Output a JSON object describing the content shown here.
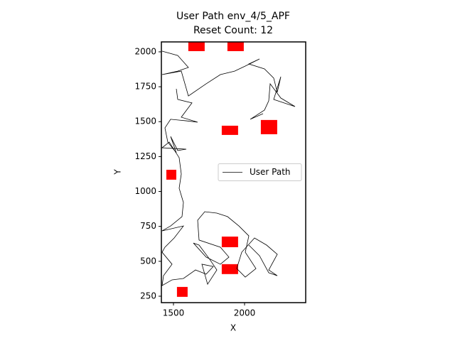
{
  "chart_data": {
    "type": "line",
    "title": "User Path env_4/5_APF",
    "subtitle": "Reset Count: 12",
    "x_label": "X",
    "y_label": "Y",
    "xlim": [
      1415,
      2430
    ],
    "ylim": [
      204,
      2071
    ],
    "xticks": [
      1500,
      2000
    ],
    "yticks": [
      250,
      500,
      750,
      1000,
      1250,
      1500,
      1750,
      2000
    ],
    "grid": false,
    "legend": "center right",
    "series": [
      {
        "name": "User Path",
        "color": "#000000",
        "x": [
          1420,
          1530,
          1605,
          1530,
          1420,
          1555,
          1605,
          1730,
          1830,
          1930,
          2005,
          2105,
          2030,
          2140,
          2205,
          2230,
          2255,
          2205,
          2355,
          2255,
          2180,
          2170,
          2140,
          2040,
          2130,
          null,
          1520,
          1530,
          1630,
          1555,
          1670,
          1590,
          1480,
          1440,
          1460,
          1520,
          1480,
          1530,
          1590,
          1420,
          1470,
          1540,
          1555,
          1540,
          1570,
          1560,
          1480,
          1420,
          1570,
          1505,
          1440,
          1420,
          1490,
          1430,
          1420,
          1490,
          1570,
          1655,
          1730,
          1780,
          1700,
          1740,
          1805,
          1755,
          1680,
          1640,
          1730,
          1830,
          1890,
          1830,
          1680,
          1670,
          1720,
          1805,
          1880,
          1960,
          2030,
          2005,
          2080,
          2005,
          1945,
          1980,
          2070,
          2155,
          2230,
          2170,
          2230,
          2170,
          2105,
          2030
        ],
        "values": [
          2005,
          1974,
          1888,
          1862,
          1837,
          1862,
          1684,
          1771,
          1837,
          1862,
          1898,
          1949,
          1913,
          1878,
          1812,
          1710,
          1822,
          1659,
          1608,
          1669,
          1771,
          1649,
          1583,
          1517,
          1557,
          null,
          1735,
          1659,
          1634,
          1532,
          1496,
          1506,
          1517,
          1455,
          1354,
          1277,
          1394,
          1293,
          1303,
          1313,
          1354,
          1242,
          1125,
          1023,
          921,
          820,
          753,
          718,
          753,
          667,
          601,
          565,
          479,
          397,
          326,
          367,
          377,
          438,
          408,
          463,
          479,
          336,
          438,
          514,
          616,
          631,
          530,
          479,
          530,
          601,
          652,
          794,
          855,
          845,
          820,
          753,
          682,
          565,
          448,
          387,
          448,
          565,
          667,
          616,
          550,
          438,
          397,
          418,
          540,
          616
        ]
      }
    ],
    "obstacles": [
      {
        "x": 1662,
        "y": 2038,
        "w": 115,
        "h": 66
      },
      {
        "x": 1937,
        "y": 2038,
        "w": 115,
        "h": 66
      },
      {
        "x": 1897,
        "y": 1438,
        "w": 115,
        "h": 66
      },
      {
        "x": 2172,
        "y": 1461,
        "w": 115,
        "h": 102
      },
      {
        "x": 1485,
        "y": 1120,
        "w": 70,
        "h": 71
      },
      {
        "x": 1897,
        "y": 639,
        "w": 115,
        "h": 76
      },
      {
        "x": 1897,
        "y": 444,
        "w": 115,
        "h": 71
      },
      {
        "x": 1562,
        "y": 281,
        "w": 75,
        "h": 71
      }
    ],
    "obstacle_color": "#ff0000"
  }
}
